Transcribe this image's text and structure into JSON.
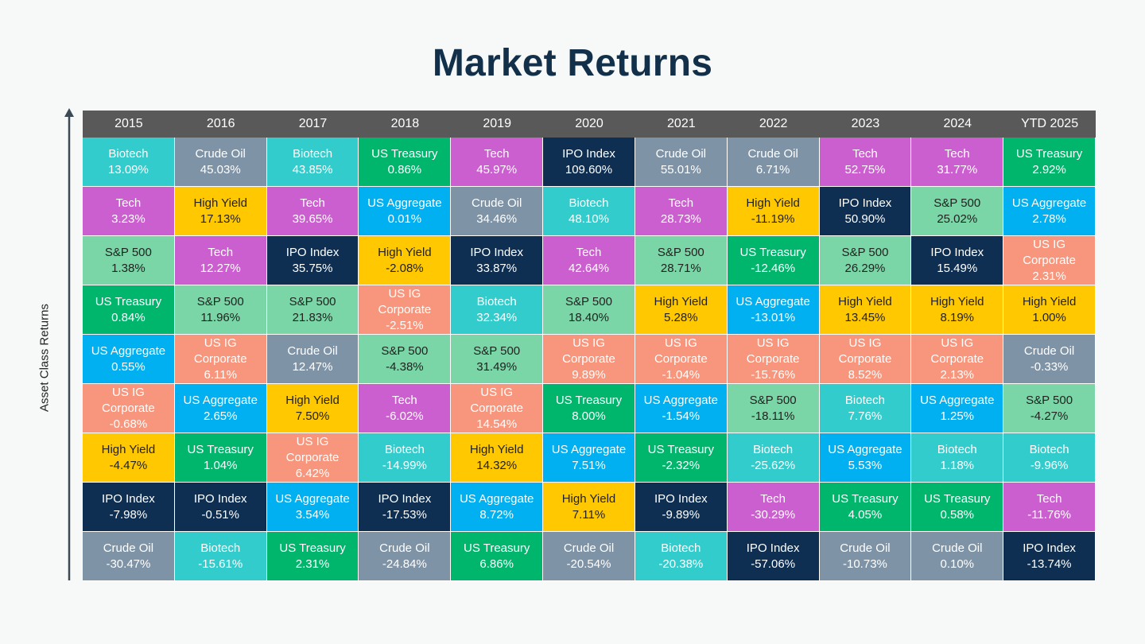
{
  "title": "Market Returns",
  "y_axis_label": "Asset Class Returns",
  "colors": {
    "Biotech": {
      "bg": "#33cccc",
      "fg": "#ffffff"
    },
    "Crude Oil": {
      "bg": "#7f93a6",
      "fg": "#ffffff"
    },
    "US Treasury": {
      "bg": "#00b56c",
      "fg": "#ffffff"
    },
    "Tech": {
      "bg": "#cc5fcf",
      "fg": "#ffffff"
    },
    "IPO Index": {
      "bg": "#0e2f52",
      "fg": "#ffffff"
    },
    "High Yield": {
      "bg": "#ffc800",
      "fg": "#222222"
    },
    "US Aggregate": {
      "bg": "#00b0f0",
      "fg": "#ffffff"
    },
    "S&P 500": {
      "bg": "#7ad6a6",
      "fg": "#222222"
    },
    "US IG Corporate": {
      "bg": "#f7967c",
      "fg": "#ffffff"
    },
    "header_bg": "#595959",
    "title": "#12304a"
  },
  "chart_data": {
    "type": "table",
    "title": "Market Returns",
    "ylabel": "Asset Class Returns",
    "columns": [
      {
        "year": "2015",
        "rows": [
          {
            "asset": "Biotech",
            "value": "13.09%"
          },
          {
            "asset": "Tech",
            "value": "3.23%"
          },
          {
            "asset": "S&P 500",
            "value": "1.38%"
          },
          {
            "asset": "US Treasury",
            "value": "0.84%"
          },
          {
            "asset": "US Aggregate",
            "value": "0.55%"
          },
          {
            "asset": "US IG Corporate",
            "value": "-0.68%"
          },
          {
            "asset": "High Yield",
            "value": "-4.47%"
          },
          {
            "asset": "IPO Index",
            "value": "-7.98%"
          },
          {
            "asset": "Crude Oil",
            "value": "-30.47%"
          }
        ]
      },
      {
        "year": "2016",
        "rows": [
          {
            "asset": "Crude Oil",
            "value": "45.03%"
          },
          {
            "asset": "High Yield",
            "value": "17.13%"
          },
          {
            "asset": "Tech",
            "value": "12.27%"
          },
          {
            "asset": "S&P 500",
            "value": "11.96%"
          },
          {
            "asset": "US IG Corporate",
            "value": "6.11%"
          },
          {
            "asset": "US Aggregate",
            "value": "2.65%"
          },
          {
            "asset": "US Treasury",
            "value": "1.04%"
          },
          {
            "asset": "IPO Index",
            "value": "-0.51%"
          },
          {
            "asset": "Biotech",
            "value": "-15.61%"
          }
        ]
      },
      {
        "year": "2017",
        "rows": [
          {
            "asset": "Biotech",
            "value": "43.85%"
          },
          {
            "asset": "Tech",
            "value": "39.65%"
          },
          {
            "asset": "IPO Index",
            "value": "35.75%"
          },
          {
            "asset": "S&P 500",
            "value": "21.83%"
          },
          {
            "asset": "Crude Oil",
            "value": "12.47%"
          },
          {
            "asset": "High Yield",
            "value": "7.50%"
          },
          {
            "asset": "US IG Corporate",
            "value": "6.42%"
          },
          {
            "asset": "US Aggregate",
            "value": "3.54%"
          },
          {
            "asset": "US Treasury",
            "value": "2.31%"
          }
        ]
      },
      {
        "year": "2018",
        "rows": [
          {
            "asset": "US Treasury",
            "value": "0.86%"
          },
          {
            "asset": "US Aggregate",
            "value": "0.01%"
          },
          {
            "asset": "High Yield",
            "value": "-2.08%"
          },
          {
            "asset": "US IG Corporate",
            "value": "-2.51%"
          },
          {
            "asset": "S&P 500",
            "value": "-4.38%"
          },
          {
            "asset": "Tech",
            "value": "-6.02%"
          },
          {
            "asset": "Biotech",
            "value": "-14.99%"
          },
          {
            "asset": "IPO Index",
            "value": "-17.53%"
          },
          {
            "asset": "Crude Oil",
            "value": "-24.84%"
          }
        ]
      },
      {
        "year": "2019",
        "rows": [
          {
            "asset": "Tech",
            "value": "45.97%"
          },
          {
            "asset": "Crude Oil",
            "value": "34.46%"
          },
          {
            "asset": "IPO Index",
            "value": "33.87%"
          },
          {
            "asset": "Biotech",
            "value": "32.34%"
          },
          {
            "asset": "S&P 500",
            "value": "31.49%"
          },
          {
            "asset": "US IG Corporate",
            "value": "14.54%"
          },
          {
            "asset": "High Yield",
            "value": "14.32%"
          },
          {
            "asset": "US Aggregate",
            "value": "8.72%"
          },
          {
            "asset": "US Treasury",
            "value": "6.86%"
          }
        ]
      },
      {
        "year": "2020",
        "rows": [
          {
            "asset": "IPO Index",
            "value": "109.60%"
          },
          {
            "asset": "Biotech",
            "value": "48.10%"
          },
          {
            "asset": "Tech",
            "value": "42.64%"
          },
          {
            "asset": "S&P 500",
            "value": "18.40%"
          },
          {
            "asset": "US IG Corporate",
            "value": "9.89%"
          },
          {
            "asset": "US Treasury",
            "value": "8.00%"
          },
          {
            "asset": "US Aggregate",
            "value": "7.51%"
          },
          {
            "asset": "High Yield",
            "value": "7.11%"
          },
          {
            "asset": "Crude Oil",
            "value": "-20.54%"
          }
        ]
      },
      {
        "year": "2021",
        "rows": [
          {
            "asset": "Crude Oil",
            "value": "55.01%"
          },
          {
            "asset": "Tech",
            "value": "28.73%"
          },
          {
            "asset": "S&P 500",
            "value": "28.71%"
          },
          {
            "asset": "High Yield",
            "value": "5.28%"
          },
          {
            "asset": "US IG Corporate",
            "value": "-1.04%"
          },
          {
            "asset": "US Aggregate",
            "value": "-1.54%"
          },
          {
            "asset": "US Treasury",
            "value": "-2.32%"
          },
          {
            "asset": "IPO Index",
            "value": "-9.89%"
          },
          {
            "asset": "Biotech",
            "value": "-20.38%"
          }
        ]
      },
      {
        "year": "2022",
        "rows": [
          {
            "asset": "Crude Oil",
            "value": "6.71%"
          },
          {
            "asset": "High Yield",
            "value": "-11.19%"
          },
          {
            "asset": "US Treasury",
            "value": "-12.46%"
          },
          {
            "asset": "US Aggregate",
            "value": "-13.01%"
          },
          {
            "asset": "US IG Corporate",
            "value": "-15.76%"
          },
          {
            "asset": "S&P 500",
            "value": "-18.11%"
          },
          {
            "asset": "Biotech",
            "value": "-25.62%"
          },
          {
            "asset": "Tech",
            "value": "-30.29%"
          },
          {
            "asset": "IPO Index",
            "value": "-57.06%"
          }
        ]
      },
      {
        "year": "2023",
        "rows": [
          {
            "asset": "Tech",
            "value": "52.75%"
          },
          {
            "asset": "IPO Index",
            "value": "50.90%"
          },
          {
            "asset": "S&P 500",
            "value": "26.29%"
          },
          {
            "asset": "High Yield",
            "value": "13.45%"
          },
          {
            "asset": "US IG Corporate",
            "value": "8.52%"
          },
          {
            "asset": "Biotech",
            "value": "7.76%"
          },
          {
            "asset": "US Aggregate",
            "value": "5.53%"
          },
          {
            "asset": "US Treasury",
            "value": "4.05%"
          },
          {
            "asset": "Crude Oil",
            "value": "-10.73%"
          }
        ]
      },
      {
        "year": "2024",
        "rows": [
          {
            "asset": "Tech",
            "value": "31.77%"
          },
          {
            "asset": "S&P 500",
            "value": "25.02%"
          },
          {
            "asset": "IPO Index",
            "value": "15.49%"
          },
          {
            "asset": "High Yield",
            "value": "8.19%"
          },
          {
            "asset": "US IG Corporate",
            "value": "2.13%"
          },
          {
            "asset": "US Aggregate",
            "value": "1.25%"
          },
          {
            "asset": "Biotech",
            "value": "1.18%"
          },
          {
            "asset": "US Treasury",
            "value": "0.58%"
          },
          {
            "asset": "Crude Oil",
            "value": "0.10%"
          }
        ]
      },
      {
        "year": "YTD 2025",
        "rows": [
          {
            "asset": "US Treasury",
            "value": "2.92%"
          },
          {
            "asset": "US Aggregate",
            "value": "2.78%"
          },
          {
            "asset": "US IG Corporate",
            "value": "2.31%"
          },
          {
            "asset": "High Yield",
            "value": "1.00%"
          },
          {
            "asset": "Crude Oil",
            "value": "-0.33%"
          },
          {
            "asset": "S&P 500",
            "value": "-4.27%"
          },
          {
            "asset": "Biotech",
            "value": "-9.96%"
          },
          {
            "asset": "Tech",
            "value": "-11.76%"
          },
          {
            "asset": "IPO Index",
            "value": "-13.74%"
          }
        ]
      }
    ]
  }
}
